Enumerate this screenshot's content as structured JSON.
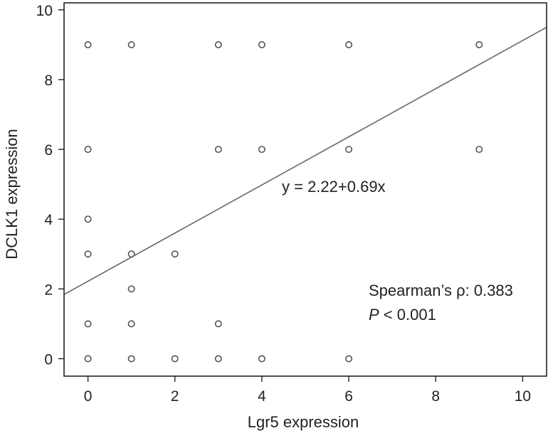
{
  "chart_data": {
    "type": "scatter",
    "title": "",
    "xlabel": "Lgr5 expression",
    "ylabel": "DCLK1 expression",
    "xlim": [
      -0.55,
      10.55
    ],
    "ylim": [
      -0.5,
      10.2
    ],
    "xticks": [
      0,
      2,
      4,
      6,
      8,
      10
    ],
    "yticks": [
      0,
      2,
      4,
      6,
      8,
      10
    ],
    "xtick_labels": [
      "0",
      "2",
      "4",
      "6",
      "8",
      "10"
    ],
    "ytick_labels": [
      "0",
      "2",
      "4",
      "6",
      "8",
      "10"
    ],
    "grid": false,
    "legend": "none",
    "marker_color": "#555555",
    "line_color": "#666666",
    "points": [
      {
        "x": 0,
        "y": 9
      },
      {
        "x": 1,
        "y": 9
      },
      {
        "x": 3,
        "y": 9
      },
      {
        "x": 4,
        "y": 9
      },
      {
        "x": 6,
        "y": 9
      },
      {
        "x": 9,
        "y": 9
      },
      {
        "x": 0,
        "y": 6
      },
      {
        "x": 3,
        "y": 6
      },
      {
        "x": 4,
        "y": 6
      },
      {
        "x": 6,
        "y": 6
      },
      {
        "x": 9,
        "y": 6
      },
      {
        "x": 0,
        "y": 4
      },
      {
        "x": 0,
        "y": 3
      },
      {
        "x": 1,
        "y": 3
      },
      {
        "x": 2,
        "y": 3
      },
      {
        "x": 1,
        "y": 2
      },
      {
        "x": 0,
        "y": 1
      },
      {
        "x": 1,
        "y": 1
      },
      {
        "x": 3,
        "y": 1
      },
      {
        "x": 0,
        "y": 0
      },
      {
        "x": 1,
        "y": 0
      },
      {
        "x": 2,
        "y": 0
      },
      {
        "x": 3,
        "y": 0
      },
      {
        "x": 4,
        "y": 0
      },
      {
        "x": 6,
        "y": 0
      }
    ],
    "regression": {
      "intercept": 2.22,
      "slope": 0.69,
      "equation_label": "y = 2.22+0.69x"
    },
    "annotations": {
      "spearman": "Spearman’s ρ: 0.383",
      "p_symbol": "P",
      "p_rest": " < 0.001"
    }
  }
}
